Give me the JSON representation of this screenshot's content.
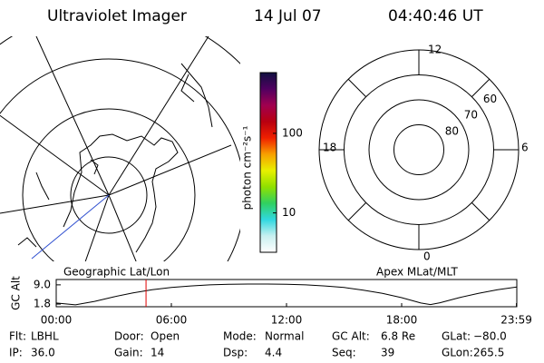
{
  "header": {
    "title": "Ultraviolet Imager",
    "date": "14 Jul 07",
    "time": "04:40:46 UT"
  },
  "colorbar": {
    "label": "photon cm⁻²s⁻¹",
    "log": true,
    "clim": [
      3.2,
      580
    ],
    "ticks": [
      10,
      100
    ],
    "colors": [
      "#ffffff",
      "#c8f0f0",
      "#30d8e0",
      "#30d060",
      "#90e000",
      "#e8f000",
      "#f8a000",
      "#f02000",
      "#b80010",
      "#a00050",
      "#500060",
      "#101040"
    ]
  },
  "left_panel": {
    "caption": "Geographic Lat/Lon",
    "track_color": "#3050d0"
  },
  "right_panel": {
    "caption": "Apex MLat/MLT",
    "outer_lat": 50,
    "lat_labels": [
      60,
      70,
      80
    ],
    "mlt_labels": {
      "top": "12",
      "left": "18",
      "right": "6",
      "bottom": "0"
    }
  },
  "timeline": {
    "ylabel": "GC Alt",
    "ylim": [
      0.8,
      11.0
    ],
    "yticks": [
      {
        "value": 9.0,
        "label": "9.0"
      },
      {
        "value": 1.8,
        "label": "1.8"
      }
    ],
    "xlim": [
      0,
      24
    ],
    "xticks": [
      {
        "value": 0,
        "label": "00:00"
      },
      {
        "value": 6,
        "label": "06:00"
      },
      {
        "value": 12,
        "label": "12:00"
      },
      {
        "value": 18,
        "label": "18:00"
      },
      {
        "value": 23.98,
        "label": "23:59"
      }
    ],
    "x": [
      0,
      1,
      2,
      3,
      4,
      5,
      6,
      7,
      8,
      9,
      10,
      11,
      12,
      13,
      14,
      15,
      16,
      17,
      18,
      19,
      19.5,
      20,
      21,
      22,
      23,
      24
    ],
    "values": [
      2.2,
      1.5,
      2.8,
      4.5,
      6.0,
      7.2,
      8.0,
      8.6,
      9.0,
      9.2,
      9.3,
      9.3,
      9.2,
      9.0,
      8.6,
      8.0,
      7.0,
      5.8,
      4.2,
      2.2,
      1.6,
      2.3,
      4.2,
      5.8,
      7.2,
      8.2
    ],
    "color": "#000000",
    "marker": {
      "x": 4.68,
      "color": "#e00000"
    }
  },
  "footer": {
    "rows": [
      [
        [
          "Flt:",
          "LBHL"
        ],
        [
          "Door:",
          "Open"
        ],
        [
          "Mode:",
          "Normal"
        ],
        [
          "GC Alt:",
          "6.8 Re"
        ],
        [
          "GLat:",
          "−80.0"
        ]
      ],
      [
        [
          "IP:",
          "36.0"
        ],
        [
          "Gain:",
          "14"
        ],
        [
          "Dsp:",
          "4.4"
        ],
        [
          "Seq:",
          "39"
        ],
        [
          "GLon:",
          "265.5"
        ]
      ]
    ]
  }
}
